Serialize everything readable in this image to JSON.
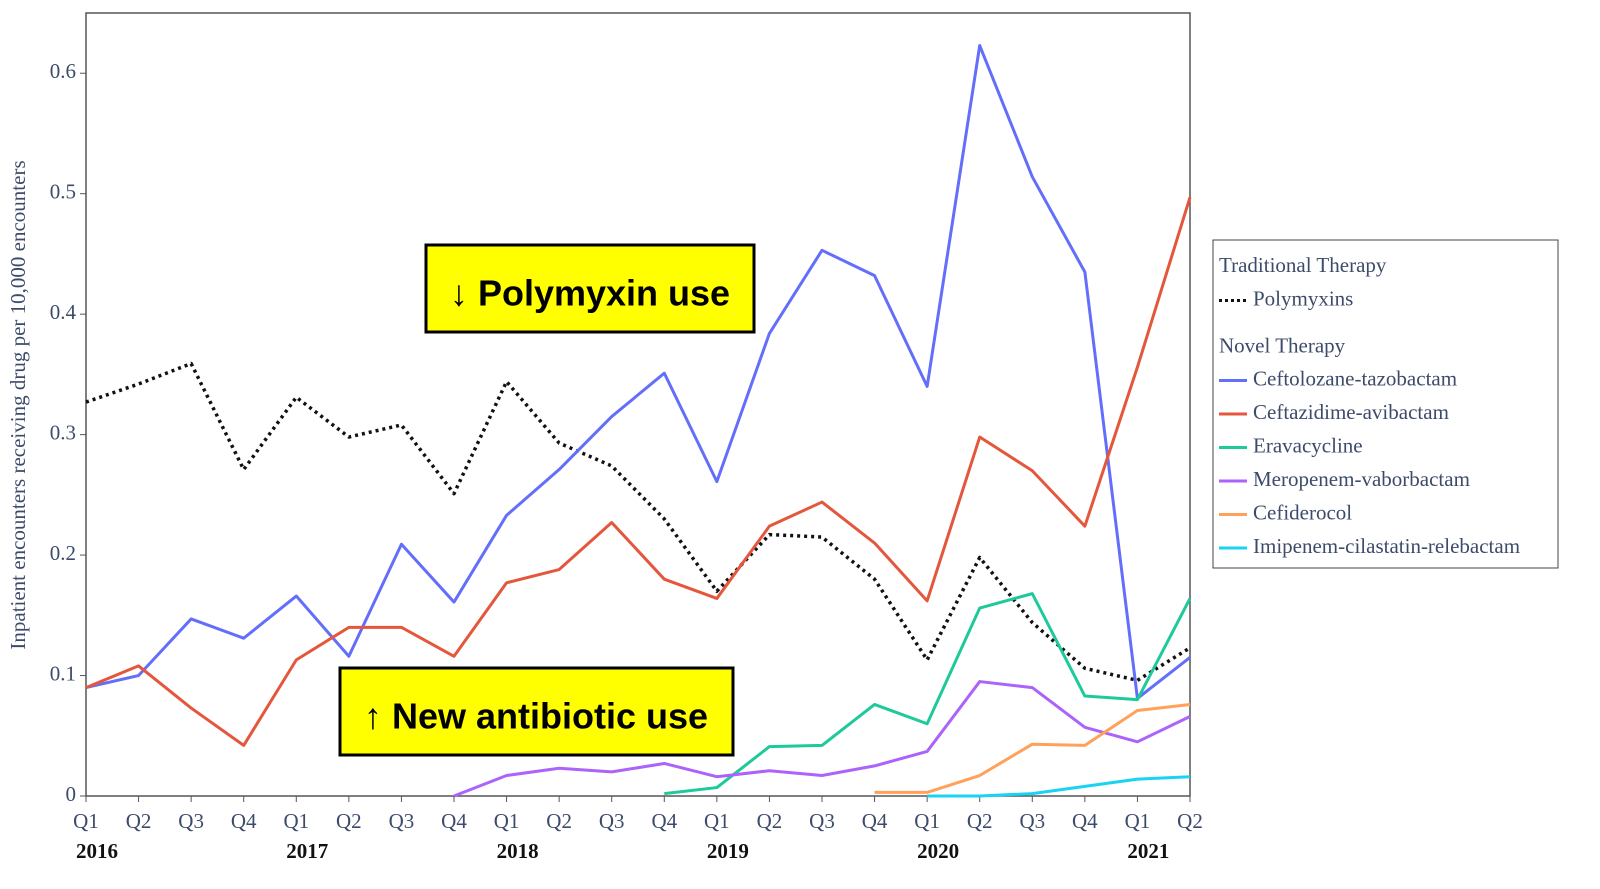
{
  "chart_data": {
    "type": "line",
    "y_label": "Inpatient encounters receiving drug per 10,000 encounters",
    "categories": [
      "Q1",
      "Q2",
      "Q3",
      "Q4",
      "Q1",
      "Q2",
      "Q3",
      "Q4",
      "Q1",
      "Q2",
      "Q3",
      "Q4",
      "Q1",
      "Q2",
      "Q3",
      "Q4",
      "Q1",
      "Q2",
      "Q3",
      "Q4",
      "Q1",
      "Q2"
    ],
    "years": [
      "2016",
      "2017",
      "2018",
      "2019",
      "2020",
      "2021"
    ],
    "ylim": [
      0,
      0.65
    ],
    "yticks": [
      0,
      0.1,
      0.2,
      0.3,
      0.4,
      0.5,
      0.6
    ],
    "legend_groups": [
      "Traditional Therapy",
      "Novel Therapy"
    ],
    "series": [
      {
        "name": "Polymyxins",
        "color": "#111111",
        "dash": "dotted",
        "values": [
          0.327,
          0.342,
          0.359,
          0.271,
          0.331,
          0.298,
          0.308,
          0.251,
          0.344,
          0.293,
          0.274,
          0.23,
          0.17,
          0.217,
          0.215,
          0.18,
          0.113,
          0.198,
          0.144,
          0.106,
          0.096,
          0.123
        ]
      },
      {
        "name": "Ceftolozane-tazobactam",
        "color": "#636efa",
        "values": [
          0.09,
          0.1,
          0.147,
          0.131,
          0.166,
          0.116,
          0.209,
          0.161,
          0.233,
          0.271,
          0.315,
          0.351,
          0.261,
          0.384,
          0.453,
          0.432,
          0.34,
          0.623,
          0.514,
          0.435,
          0.081,
          0.115
        ]
      },
      {
        "name": "Ceftazidime-avibactam",
        "color": "#e4573d",
        "values": [
          0.09,
          0.108,
          0.073,
          0.042,
          0.113,
          0.14,
          0.14,
          0.116,
          0.177,
          0.188,
          0.227,
          0.18,
          0.164,
          0.224,
          0.244,
          0.21,
          0.162,
          0.298,
          0.27,
          0.224,
          0.356,
          0.497
        ]
      },
      {
        "name": "Eravacycline",
        "color": "#1ec99a",
        "values": [
          null,
          null,
          null,
          null,
          null,
          null,
          null,
          null,
          null,
          null,
          null,
          0.002,
          0.007,
          0.041,
          0.042,
          0.076,
          0.06,
          0.156,
          0.168,
          0.083,
          0.08,
          0.164
        ]
      },
      {
        "name": "Meropenem-vaborbactam",
        "color": "#ab63fa",
        "values": [
          null,
          null,
          null,
          null,
          null,
          null,
          null,
          0,
          0.017,
          0.023,
          0.02,
          0.027,
          0.016,
          0.021,
          0.017,
          0.025,
          0.037,
          0.095,
          0.09,
          0.057,
          0.045,
          0.066
        ]
      },
      {
        "name": "Cefiderocol",
        "color": "#ffa15a",
        "values": [
          null,
          null,
          null,
          null,
          null,
          null,
          null,
          null,
          null,
          null,
          null,
          null,
          null,
          null,
          null,
          0.003,
          0.003,
          0.017,
          0.043,
          0.042,
          0.071,
          0.076
        ]
      },
      {
        "name": "Imipenem-cilastatin-relebactam",
        "color": "#19d3f3",
        "values": [
          null,
          null,
          null,
          null,
          null,
          null,
          null,
          null,
          null,
          null,
          null,
          null,
          null,
          null,
          null,
          null,
          0,
          0,
          0.002,
          0.008,
          0.014,
          0.016
        ]
      }
    ],
    "annotations": [
      "↓ Polymyxin use",
      "↑ New antibiotic use"
    ]
  }
}
